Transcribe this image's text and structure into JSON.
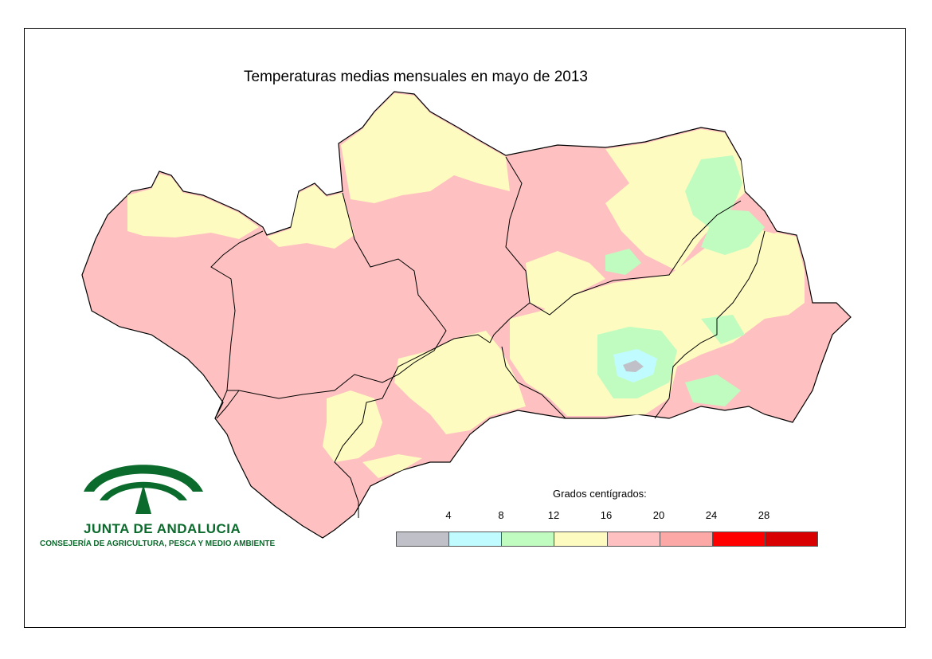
{
  "title": "Temperaturas medias mensuales en mayo de 2013",
  "legend": {
    "title": "Grados centígrados:",
    "ticks": [
      "4",
      "8",
      "12",
      "16",
      "20",
      "24",
      "28"
    ],
    "classes": [
      {
        "color": "#c0c0c8"
      },
      {
        "color": "#c0fcff"
      },
      {
        "color": "#c0fcc0"
      },
      {
        "color": "#fdfbc0"
      },
      {
        "color": "#fec0c0"
      },
      {
        "color": "#fca8a6"
      },
      {
        "color": "#ff0000"
      },
      {
        "color": "#d80000"
      }
    ]
  },
  "colors": {
    "dominant_fill": "#fec0c0",
    "mid_fill": "#fdfbc0",
    "cool_fill": "#c0fcc0",
    "cold_fill": "#c0fcff",
    "coldest_fill": "#c0c0c8",
    "logo_green": "#0b6b2c"
  },
  "logo": {
    "name": "JUNTA DE ANDALUCIA",
    "subtitle": "CONSEJERÍA DE AGRICULTURA, PESCA Y MEDIO AMBIENTE",
    "icon": "junta-andalucia-arches-icon"
  }
}
